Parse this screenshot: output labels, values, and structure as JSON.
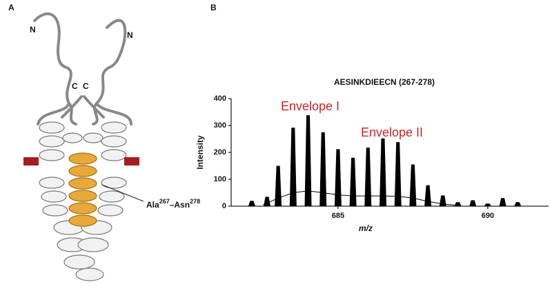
{
  "panel_a": {
    "label": "A",
    "termini": [
      "N",
      "N",
      "C",
      "C"
    ],
    "annotation": {
      "residue1": "Ala",
      "pos1": "267",
      "sep": "–Asn",
      "pos2": "278"
    }
  },
  "panel_b": {
    "label": "B"
  },
  "chart_data": {
    "type": "bar",
    "title": "AESINKDIEECN (267-278)",
    "y_label": "Intensity",
    "x_label": "m/z",
    "xlim": [
      681.43,
      692.03
    ],
    "ylim": [
      0,
      400
    ],
    "xticks": [
      685,
      690
    ],
    "yticks": [
      0,
      100,
      200,
      300,
      400
    ],
    "annotations": [
      {
        "text": "Envelope I",
        "color": "#c0262d"
      },
      {
        "text": "Envelope II",
        "color": "#c0262d"
      }
    ],
    "series": [
      {
        "type": "bar",
        "color": "#000000",
        "x": [
          682.12,
          682.63,
          683.0,
          683.5,
          684.0,
          684.5,
          685.0,
          685.5,
          686.0,
          686.5,
          687.0,
          687.5,
          688.0,
          688.5,
          689.0,
          689.5,
          690.0,
          690.5,
          691.0
        ],
        "values": [
          20,
          35,
          150,
          292,
          338,
          275,
          212,
          180,
          218,
          252,
          238,
          155,
          78,
          40,
          15,
          22,
          10,
          30,
          15
        ]
      },
      {
        "type": "line",
        "color": "#000000",
        "x": [
          682.5,
          683,
          683.5,
          684,
          684.5,
          685,
          685.5,
          686,
          686.5,
          687,
          687.5,
          688,
          688.5,
          689
        ],
        "values": [
          5,
          30,
          50,
          57,
          50,
          42,
          38,
          38,
          38,
          37,
          30,
          18,
          8,
          3
        ]
      }
    ]
  }
}
